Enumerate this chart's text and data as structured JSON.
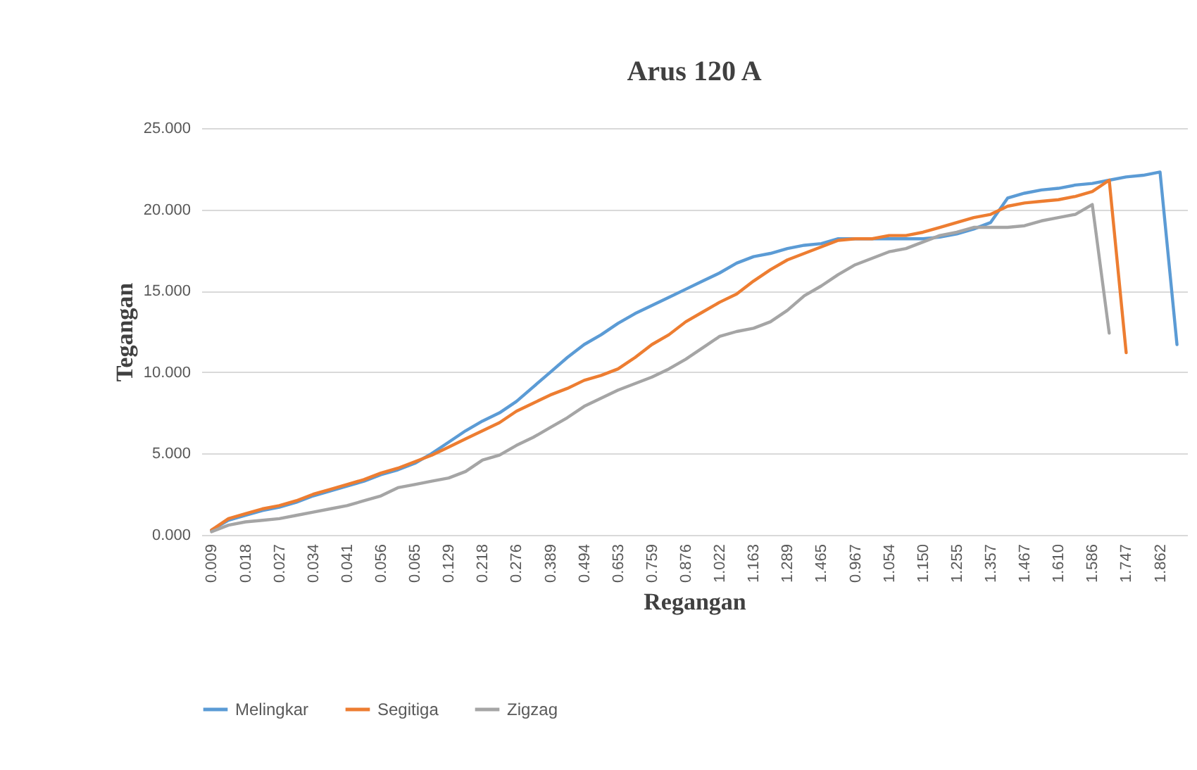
{
  "chart_data": {
    "type": "line",
    "title": "Arus 120 A",
    "xlabel": "Regangan",
    "ylabel": "Tegangan",
    "categories": [
      "0.009",
      null,
      "0.018",
      null,
      "0.027",
      null,
      "0.034",
      null,
      "0.041",
      null,
      "0.056",
      null,
      "0.065",
      null,
      "0.129",
      null,
      "0.218",
      null,
      "0.276",
      null,
      "0.389",
      null,
      "0.494",
      null,
      "0.653",
      null,
      "0.759",
      null,
      "0.876",
      null,
      "1.022",
      null,
      "1.163",
      null,
      "1.289",
      null,
      "1.465",
      null,
      "0.967",
      null,
      "1.054",
      null,
      "1.150",
      null,
      "1.255",
      null,
      "1.357",
      null,
      "1.467",
      null,
      "1.610",
      null,
      "1.586",
      null,
      "1.747",
      null,
      "1.862",
      null
    ],
    "series": [
      {
        "name": "Melingkar",
        "color": "#5b9bd5",
        "values": [
          0.3,
          0.9,
          1.2,
          1.5,
          1.7,
          2.0,
          2.4,
          2.7,
          3.0,
          3.3,
          3.7,
          4.0,
          4.4,
          5.0,
          5.7,
          6.4,
          7.0,
          7.5,
          8.2,
          9.1,
          10.0,
          10.9,
          11.7,
          12.3,
          13.0,
          13.6,
          14.1,
          14.6,
          15.1,
          15.6,
          16.1,
          16.7,
          17.1,
          17.3,
          17.6,
          17.8,
          17.9,
          18.2,
          18.2,
          18.2,
          18.2,
          18.2,
          18.2,
          18.3,
          18.5,
          18.8,
          19.2,
          20.7,
          21.0,
          21.2,
          21.3,
          21.5,
          21.6,
          21.8,
          22.0,
          22.1,
          22.3,
          11.7
        ]
      },
      {
        "name": "Segitiga",
        "color": "#ed7d31",
        "values": [
          0.3,
          1.0,
          1.3,
          1.6,
          1.8,
          2.1,
          2.5,
          2.8,
          3.1,
          3.4,
          3.8,
          4.1,
          4.5,
          4.9,
          5.4,
          5.9,
          6.4,
          6.9,
          7.6,
          8.1,
          8.6,
          9.0,
          9.5,
          9.8,
          10.2,
          10.9,
          11.7,
          12.3,
          13.1,
          13.7,
          14.3,
          14.8,
          15.6,
          16.3,
          16.9,
          17.3,
          17.7,
          18.1,
          18.2,
          18.2,
          18.4,
          18.4,
          18.6,
          18.9,
          19.2,
          19.5,
          19.7,
          20.2,
          20.4,
          20.5,
          20.6,
          20.8,
          21.1,
          21.8,
          11.2,
          null,
          null,
          null
        ]
      },
      {
        "name": "Zigzag",
        "color": "#a5a5a5",
        "values": [
          0.2,
          0.6,
          0.8,
          0.9,
          1.0,
          1.2,
          1.4,
          1.6,
          1.8,
          2.1,
          2.4,
          2.9,
          3.1,
          3.3,
          3.5,
          3.9,
          4.6,
          4.9,
          5.5,
          6.0,
          6.6,
          7.2,
          7.9,
          8.4,
          8.9,
          9.3,
          9.7,
          10.2,
          10.8,
          11.5,
          12.2,
          12.5,
          12.7,
          13.1,
          13.8,
          14.7,
          15.3,
          16.0,
          16.6,
          17.0,
          17.4,
          17.6,
          18.0,
          18.4,
          18.6,
          18.9,
          18.9,
          18.9,
          19.0,
          19.3,
          19.5,
          19.7,
          20.3,
          12.4,
          null,
          null,
          null,
          null
        ]
      }
    ],
    "ylim": [
      0,
      25
    ],
    "yticks": [
      {
        "value": 0,
        "label": "0.000"
      },
      {
        "value": 5,
        "label": "5.000"
      },
      {
        "value": 10,
        "label": "10.000"
      },
      {
        "value": 15,
        "label": "15.000"
      },
      {
        "value": 20,
        "label": "20.000"
      },
      {
        "value": 25,
        "label": "25.000"
      }
    ],
    "grid": "y",
    "legend": "bottom",
    "marker": "none",
    "line_style": "solid"
  }
}
